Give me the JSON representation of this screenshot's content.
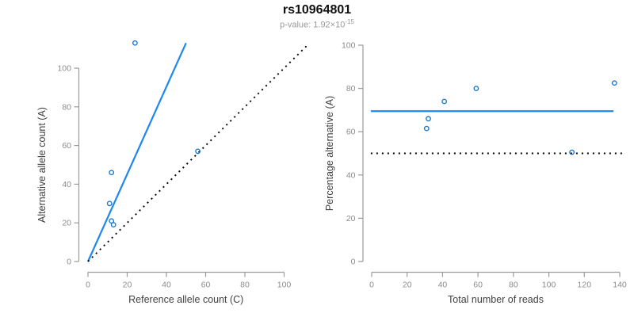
{
  "header": {
    "title": "rs10964801",
    "p_value": {
      "text": "p-value: 1.92×10",
      "exponent": "-15"
    }
  },
  "colors": {
    "fit_line": "#1e87f0",
    "identity_line": "#000000",
    "point_stroke": "#1a77cf",
    "axis": "#9b9b9b",
    "tick_label": "#8c8c8c",
    "axis_title": "#404040",
    "title": "#111111",
    "subtitle": "#9a9a9a",
    "background": "#ffffff"
  },
  "chart_data": [
    {
      "type": "scatter",
      "name": "allele-counts",
      "xlabel": "Reference allele count (C)",
      "ylabel": "Alternative allele count (A)",
      "xlim": [
        0,
        100
      ],
      "ylim": [
        0,
        100
      ],
      "xticks": [
        0,
        20,
        40,
        60,
        80,
        100
      ],
      "yticks": [
        0,
        20,
        40,
        60,
        80,
        100
      ],
      "grid": false,
      "legend": "none",
      "points": [
        [
          24,
          113
        ],
        [
          56,
          57
        ],
        [
          12,
          46
        ],
        [
          11,
          30
        ],
        [
          12,
          21
        ],
        [
          13,
          19
        ]
      ],
      "lines": [
        {
          "style": "solid",
          "role": "fitted-ratio",
          "color_key": "fit_line",
          "from": [
            0,
            0
          ],
          "to": [
            50,
            113
          ]
        },
        {
          "style": "dotted",
          "role": "identity-y-equals-x",
          "color_key": "identity_line",
          "from": [
            0,
            0
          ],
          "to": [
            112,
            112
          ]
        }
      ]
    },
    {
      "type": "scatter",
      "name": "percentage-vs-reads",
      "xlabel": "Total number of reads",
      "ylabel": "Percentage alternative (A)",
      "xlim": [
        0,
        140
      ],
      "ylim": [
        0,
        100
      ],
      "xticks": [
        0,
        20,
        40,
        60,
        80,
        100,
        120,
        140
      ],
      "yticks": [
        0,
        20,
        40,
        60,
        80,
        100
      ],
      "grid": false,
      "legend": "none",
      "points": [
        [
          137,
          82.5
        ],
        [
          113,
          50.5
        ],
        [
          59,
          80
        ],
        [
          41,
          74
        ],
        [
          32,
          66
        ],
        [
          31,
          61.5
        ]
      ],
      "lines": [
        {
          "style": "solid",
          "role": "mean-percentage",
          "color_key": "fit_line",
          "from": [
            -0.5,
            69.5
          ],
          "to": [
            136.5,
            69.5
          ]
        },
        {
          "style": "dotted",
          "role": "fifty-percent-level",
          "color_key": "identity_line",
          "from": [
            -0.5,
            50
          ],
          "to": [
            143,
            50
          ]
        }
      ]
    }
  ]
}
